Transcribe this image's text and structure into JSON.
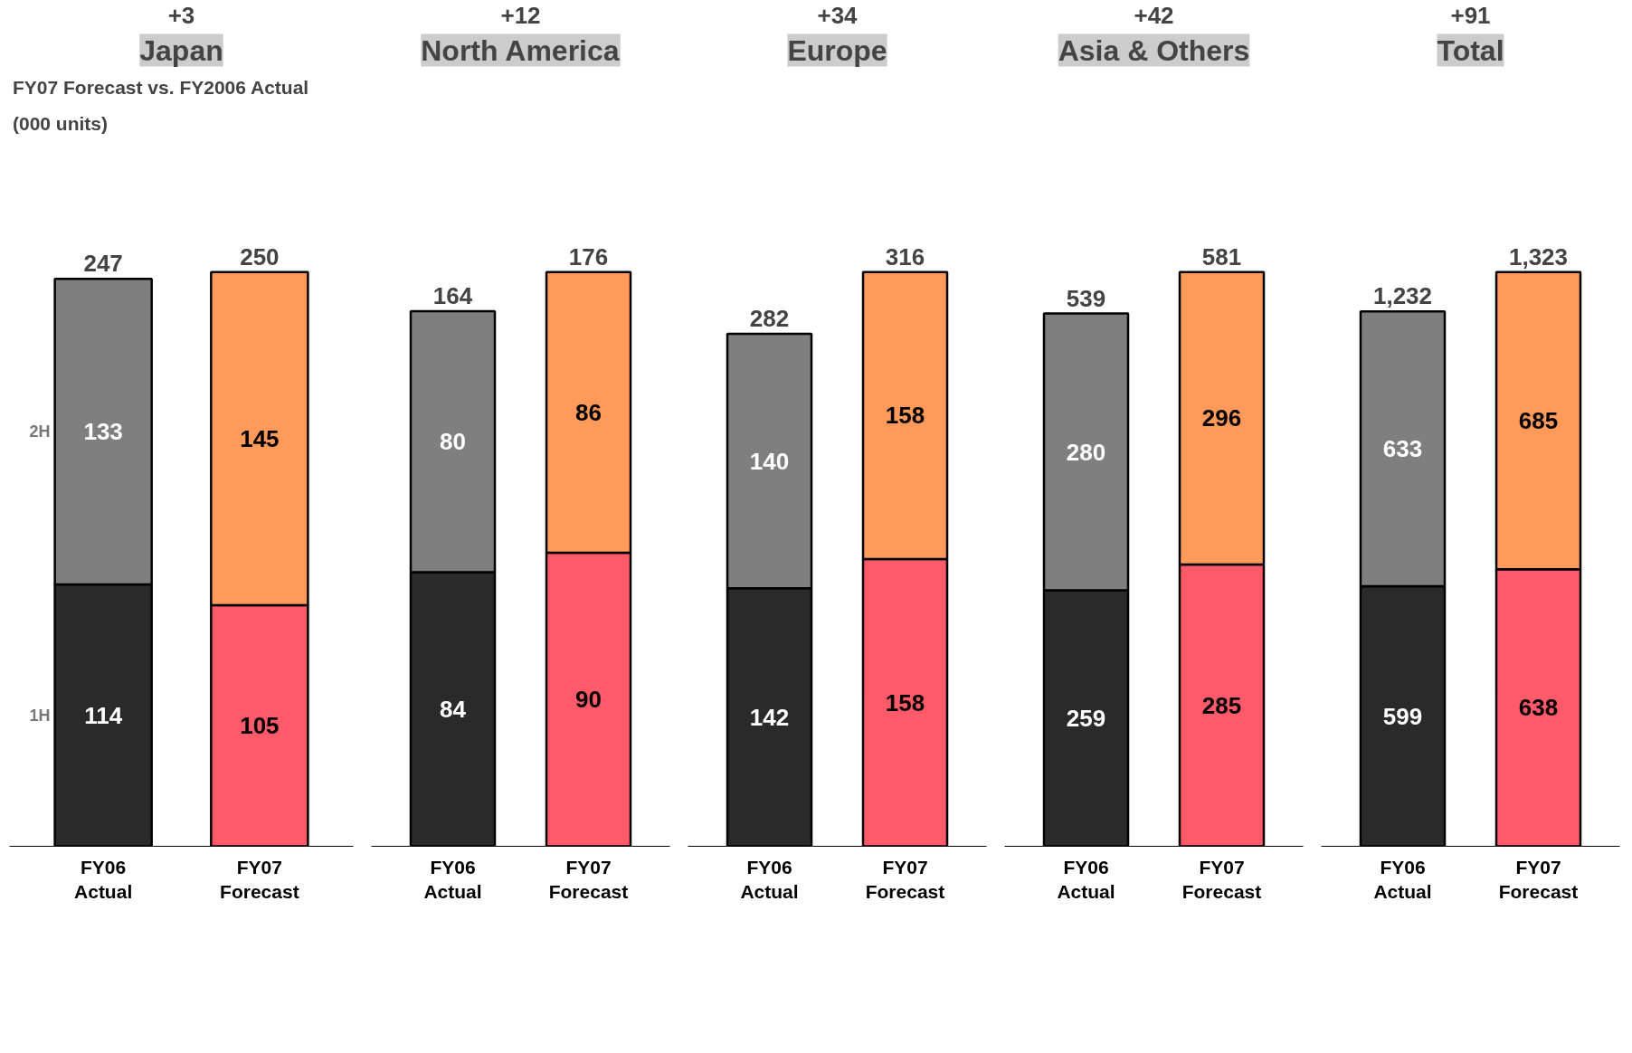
{
  "chart_data": [
    {
      "type": "bar",
      "title": "Japan",
      "subtitle": "+3",
      "stacked": true,
      "categories": [
        "FY06\nActual",
        "FY07\nForecast"
      ],
      "tick_labels": "x",
      "data_labels": true,
      "totals": [
        "247",
        "250"
      ],
      "annotations": [
        "FY07 Forecast vs. FY2006 Actual",
        "(000 units)"
      ],
      "series": [
        {
          "name": "1H",
          "colors": [
            "#2a2a2a",
            "#ff5a6a"
          ],
          "values": [
            114,
            105
          ]
        },
        {
          "name": "2H",
          "colors": [
            "#7f7f7f",
            "#ff9a5a"
          ],
          "values": [
            133,
            145
          ]
        }
      ]
    },
    {
      "type": "bar",
      "title": "North America",
      "subtitle": "+12",
      "stacked": true,
      "categories": [
        "FY06\nActual",
        "FY07\nForecast"
      ],
      "tick_labels": "x",
      "data_labels": true,
      "totals": [
        "164",
        "176"
      ],
      "series": [
        {
          "colors": [
            "#2a2a2a",
            "#ff5a6a"
          ],
          "values": [
            84,
            90
          ]
        },
        {
          "colors": [
            "#7f7f7f",
            "#ff9a5a"
          ],
          "values": [
            80,
            86
          ]
        }
      ]
    },
    {
      "type": "bar",
      "title": "Europe",
      "subtitle": "+34",
      "stacked": true,
      "categories": [
        "FY06\nActual",
        "FY07\nForecast"
      ],
      "tick_labels": "x",
      "data_labels": true,
      "totals": [
        "282",
        "316"
      ],
      "series": [
        {
          "colors": [
            "#2a2a2a",
            "#ff5a6a"
          ],
          "values": [
            142,
            158
          ]
        },
        {
          "colors": [
            "#7f7f7f",
            "#ff9a5a"
          ],
          "values": [
            140,
            158
          ]
        }
      ]
    },
    {
      "type": "bar",
      "title": "Asia & Others",
      "subtitle": "+42",
      "stacked": true,
      "categories": [
        "FY06\nActual",
        "FY07\nForecast"
      ],
      "tick_labels": "x",
      "data_labels": true,
      "totals": [
        "539",
        "581"
      ],
      "series": [
        {
          "colors": [
            "#2a2a2a",
            "#ff5a6a"
          ],
          "values": [
            259,
            285
          ]
        },
        {
          "colors": [
            "#7f7f7f",
            "#ff9a5a"
          ],
          "values": [
            280,
            296
          ]
        }
      ]
    },
    {
      "type": "bar",
      "title": "Total",
      "subtitle": "+91",
      "stacked": true,
      "categories": [
        "FY06\nActual",
        "FY07\nForecast"
      ],
      "tick_labels": "x",
      "data_labels": true,
      "totals": [
        "1,232",
        "1,323"
      ],
      "series": [
        {
          "colors": [
            "#2a2a2a",
            "#ff5a6a"
          ],
          "values": [
            599,
            638
          ]
        },
        {
          "colors": [
            "#7f7f7f",
            "#ff9a5a"
          ],
          "values": [
            633,
            685
          ]
        }
      ]
    }
  ]
}
